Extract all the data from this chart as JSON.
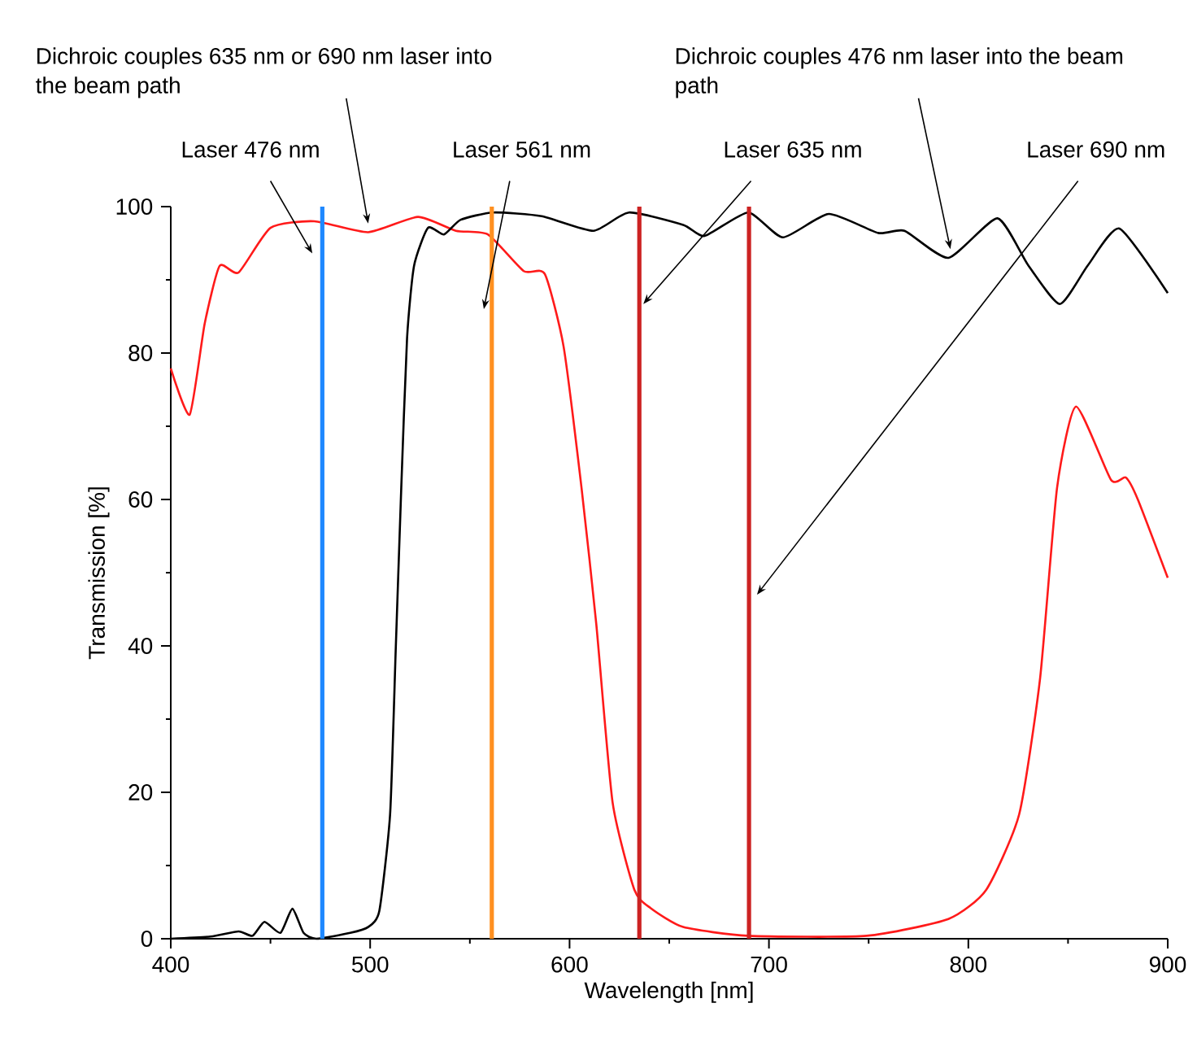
{
  "chart_data": {
    "type": "line",
    "xlabel": "Wavelength [nm]",
    "ylabel": "Transmission [%]",
    "xlim": [
      400,
      900
    ],
    "ylim": [
      0,
      100
    ],
    "xticks": [
      400,
      500,
      600,
      700,
      800,
      900
    ],
    "yticks": [
      0,
      20,
      40,
      60,
      80,
      100
    ],
    "grid": false,
    "marker": "none",
    "line_style": "solid",
    "series": [
      {
        "color": "#ff1a1a",
        "x": [
          400,
          409.5,
          417,
          424.5,
          434,
          450,
          472,
          499,
          524,
          543,
          559,
          577,
          587.6,
          597,
          606,
          613.4,
          621.6,
          632.5,
          640.6,
          657,
          689.6,
          749,
          790,
          809,
          825.5,
          836,
          844.5,
          854,
          871.5,
          879,
          885,
          900
        ],
        "values": [
          77.9,
          71.6,
          84,
          91.9,
          91,
          97.1,
          98,
          96.5,
          98.6,
          96.7,
          96.2,
          91.2,
          90.8,
          80.9,
          61.6,
          43,
          18.6,
          6.7,
          4.2,
          1.6,
          0.4,
          0.4,
          2.7,
          6.7,
          17,
          35.6,
          61.6,
          72.7,
          62.7,
          63,
          60,
          49.3
        ]
      },
      {
        "color": "#000000",
        "x": [
          400,
          420,
          434,
          441,
          447,
          455,
          461,
          466.6,
          473,
          490,
          499,
          504.6,
          510,
          512.8,
          515.6,
          518.5,
          522,
          529,
          537,
          545.4,
          561.7,
          586,
          612,
          629.8,
          657,
          667.8,
          689.6,
          707,
          730,
          754.8,
          768,
          790,
          814.6,
          830,
          845.9,
          860,
          875.8,
          900
        ],
        "values": [
          0,
          0.3,
          1,
          0.4,
          2.3,
          0.8,
          4.1,
          0.8,
          0,
          0.8,
          1.6,
          3.8,
          17,
          39.3,
          61.6,
          82,
          91.9,
          97.1,
          96.2,
          98.2,
          99.2,
          98.7,
          96.7,
          99.2,
          97.5,
          96,
          99.2,
          95.8,
          99,
          96.4,
          96.7,
          93,
          98.4,
          92,
          86.7,
          92,
          97,
          88.2
        ]
      }
    ],
    "ref_lines": [
      {
        "axis": "x",
        "value": 476,
        "label": "Laser 476 nm",
        "color": "#1e88ff"
      },
      {
        "axis": "x",
        "value": 561,
        "label": "Laser 561 nm",
        "color": "#ff9020"
      },
      {
        "axis": "x",
        "value": 635,
        "label": "Laser 635 nm",
        "color": "#cc2222"
      },
      {
        "axis": "x",
        "value": 690,
        "label": "Laser 690 nm",
        "color": "#cc2222"
      }
    ],
    "annotations": [
      "Dichroic couples 635 nm or 690 nm laser into the beam path",
      "Dichroic couples 476 nm laser into the beam path"
    ]
  }
}
